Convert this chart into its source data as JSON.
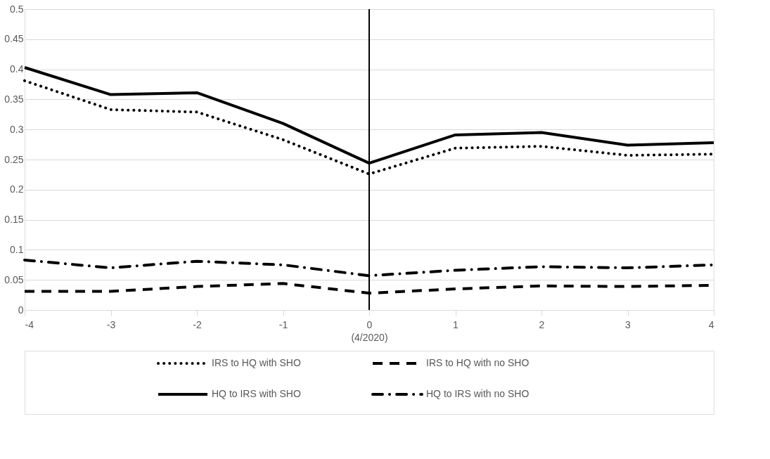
{
  "chart_data": {
    "type": "line",
    "xlabel": "(4/2020)",
    "x": [
      -4,
      -3,
      -2,
      -1,
      0,
      1,
      2,
      3,
      4
    ],
    "series": [
      {
        "name": "IRS to HQ with SHO",
        "color": "#000000",
        "line_style": "dotted",
        "values": [
          0.381,
          0.333,
          0.329,
          0.283,
          0.226,
          0.269,
          0.272,
          0.257,
          0.259
        ]
      },
      {
        "name": "IRS to HQ with no SHO",
        "color": "#000000",
        "line_style": "dashed",
        "values": [
          0.031,
          0.031,
          0.039,
          0.044,
          0.028,
          0.035,
          0.04,
          0.039,
          0.041
        ]
      },
      {
        "name": "HQ to IRS with SHO",
        "color": "#000000",
        "line_style": "solid",
        "values": [
          0.403,
          0.358,
          0.361,
          0.31,
          0.244,
          0.291,
          0.295,
          0.274,
          0.278
        ]
      },
      {
        "name": "HQ to IRS with no SHO",
        "color": "#000000",
        "line_style": "dashdot",
        "values": [
          0.083,
          0.07,
          0.081,
          0.075,
          0.057,
          0.066,
          0.072,
          0.07,
          0.075
        ]
      }
    ],
    "xlim": [
      -4,
      4
    ],
    "xticks": [
      -4,
      -3,
      -2,
      -1,
      0,
      1,
      2,
      3,
      4
    ],
    "ylim": [
      0,
      0.5
    ],
    "yticks": [
      0,
      0.05,
      0.1,
      0.15,
      0.2,
      0.25,
      0.3,
      0.35,
      0.4,
      0.45,
      0.5
    ],
    "ref_lines": [
      {
        "axis": "x",
        "value": 0,
        "color": "#000000"
      }
    ],
    "grid": "y",
    "legend": "bottom",
    "marker": "none"
  }
}
